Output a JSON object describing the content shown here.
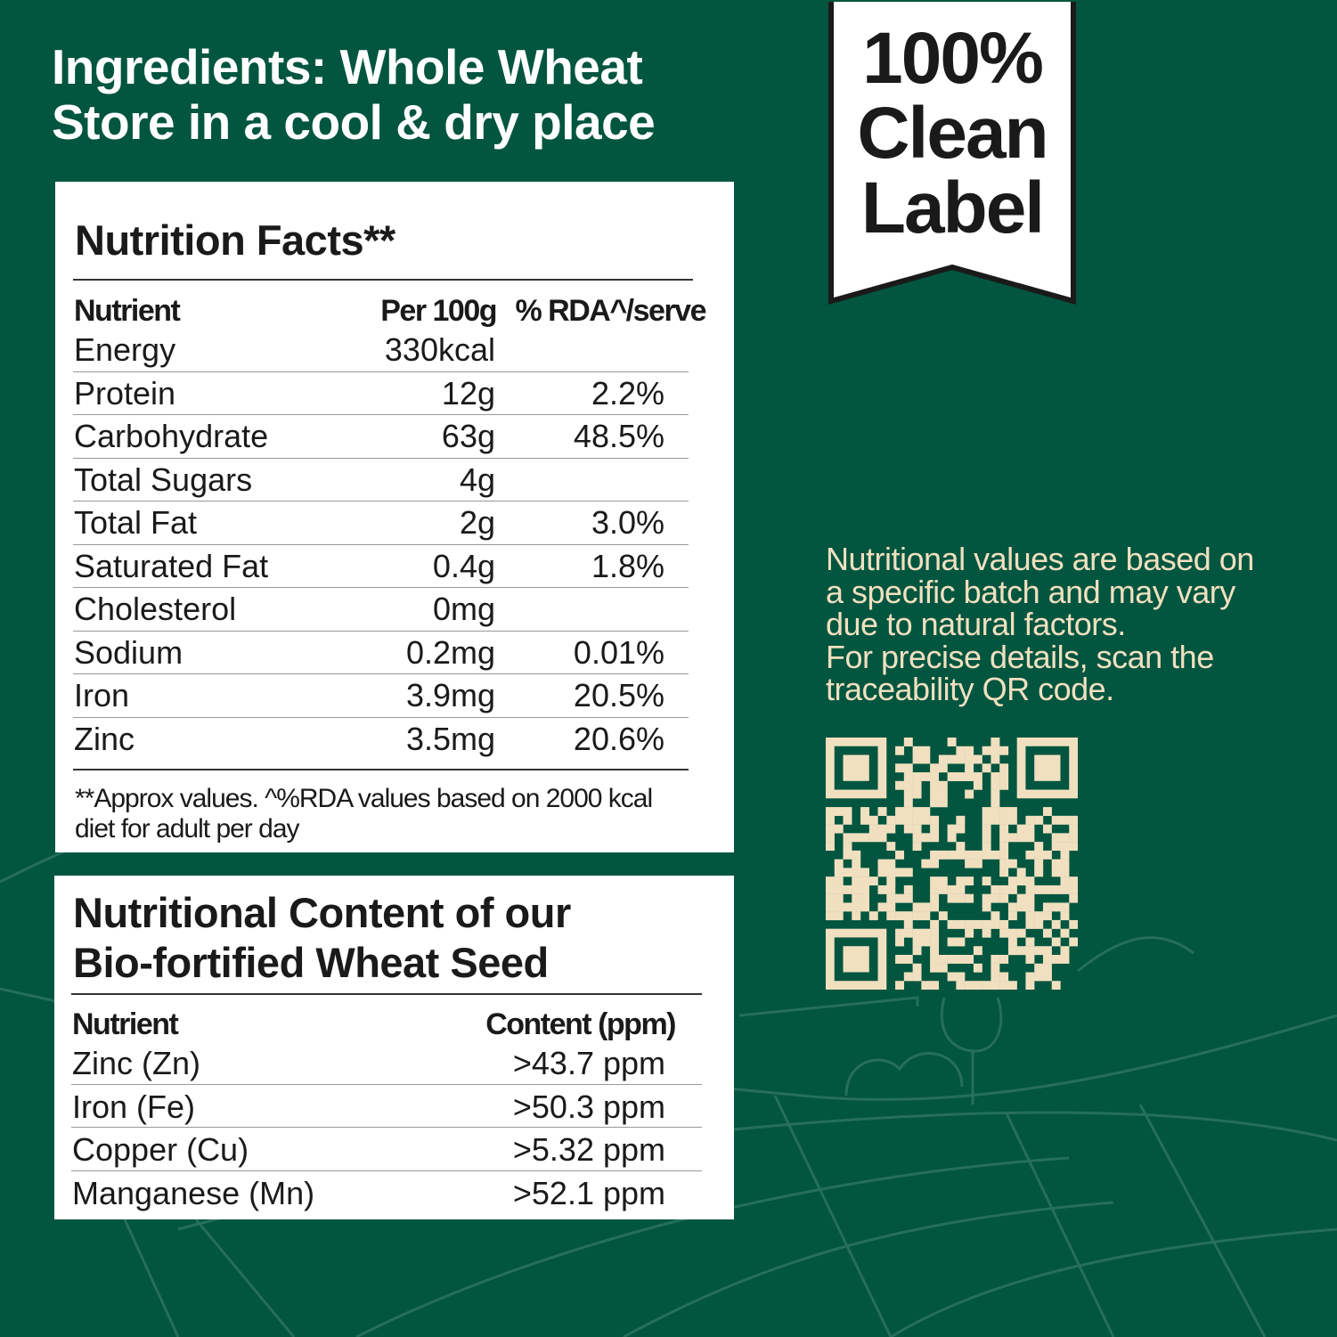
{
  "header": {
    "line1": "Ingredients: Whole Wheat",
    "line2": "Store in a cool & dry place"
  },
  "nutrition_facts": {
    "title": "Nutrition Facts**",
    "columns": [
      "Nutrient",
      "Per 100g",
      "% RDA^/serve"
    ],
    "rows": [
      {
        "nutrient": "Energy",
        "per100g": "330kcal",
        "rda": ""
      },
      {
        "nutrient": "Protein",
        "per100g": "12g",
        "rda": "2.2%"
      },
      {
        "nutrient": "Carbohydrate",
        "per100g": "63g",
        "rda": "48.5%"
      },
      {
        "nutrient": "Total Sugars",
        "per100g": "4g",
        "rda": ""
      },
      {
        "nutrient": "Total Fat",
        "per100g": "2g",
        "rda": "3.0%"
      },
      {
        "nutrient": "Saturated Fat",
        "per100g": "0.4g",
        "rda": "1.8%"
      },
      {
        "nutrient": "Cholesterol",
        "per100g": "0mg",
        "rda": ""
      },
      {
        "nutrient": "Sodium",
        "per100g": "0.2mg",
        "rda": "0.01%"
      },
      {
        "nutrient": "Iron",
        "per100g": "3.9mg",
        "rda": "20.5%"
      },
      {
        "nutrient": "Zinc",
        "per100g": "3.5mg",
        "rda": "20.6%"
      }
    ],
    "footnote_line1": "**Approx values. ^%RDA values based on 2000 kcal",
    "footnote_line2": "diet for adult per day"
  },
  "biofortified": {
    "title_line1": "Nutritional Content of our",
    "title_line2": "Bio-fortified Wheat Seed",
    "columns": [
      "Nutrient",
      "Content (ppm)"
    ],
    "rows": [
      {
        "nutrient": "Zinc (Zn)",
        "content": ">43.7 ppm"
      },
      {
        "nutrient": "Iron (Fe)",
        "content": ">50.3 ppm"
      },
      {
        "nutrient": "Copper (Cu)",
        "content": ">5.32 ppm"
      },
      {
        "nutrient": "Manganese (Mn)",
        "content": ">52.1 ppm"
      }
    ]
  },
  "badge": {
    "line1": "100%",
    "line2": "Clean",
    "line3": "Label"
  },
  "note": {
    "lines": [
      "Nutritional values are based on",
      "a specific batch and may vary",
      "due to natural factors.",
      "For precise details, scan the",
      "traceability QR code."
    ]
  },
  "qr": {
    "icon": "qr-code"
  },
  "colors": {
    "background": "#02553f",
    "cream": "#f0e0c0",
    "panel": "#ffffff",
    "text": "#1a1a1a"
  }
}
